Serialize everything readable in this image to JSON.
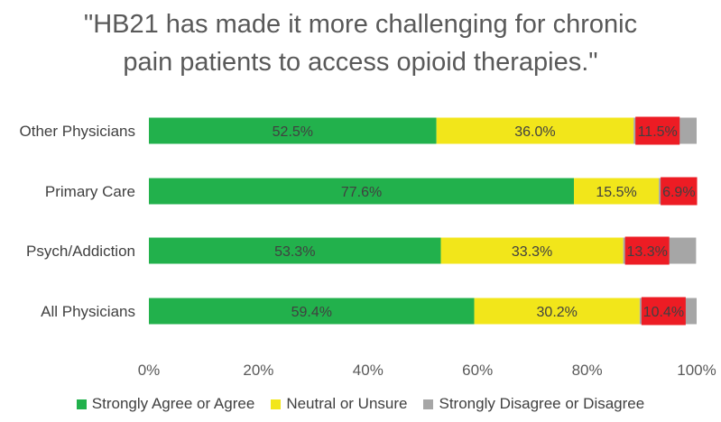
{
  "title_line1": "\"HB21 has made it more challenging for chronic",
  "title_line2": "pain patients to access opioid therapies.\"",
  "chart_data": {
    "type": "bar",
    "orientation": "horizontal",
    "stacked": true,
    "categories": [
      "Other Physicians",
      "Primary Care",
      "Psych/Addiction",
      "All Physicians"
    ],
    "series": [
      {
        "name": "Strongly Agree or Agree",
        "color": "#22b14c",
        "values": [
          52.5,
          77.6,
          53.3,
          59.4
        ],
        "labels": [
          "52.5%",
          "77.6%",
          "53.3%",
          "59.4%"
        ]
      },
      {
        "name": "Neutral or Unsure",
        "color": "#f2e61a",
        "values": [
          36.0,
          15.5,
          33.3,
          30.2
        ],
        "labels": [
          "36.0%",
          "15.5%",
          "33.3%",
          "30.2%"
        ]
      },
      {
        "name": "Strongly Disagree or Disagree",
        "color": "#a6a6a6",
        "values": [
          11.5,
          6.9,
          13.3,
          10.4
        ],
        "labels": [
          "11.5%",
          "6.9%",
          "13.3%",
          "10.4%"
        ],
        "label_box_color": "#ed1c24"
      }
    ],
    "xlim": [
      0,
      100
    ],
    "x_ticks": [
      "0%",
      "20%",
      "40%",
      "60%",
      "80%",
      "100%"
    ],
    "grid": false,
    "legend_position": "bottom"
  }
}
